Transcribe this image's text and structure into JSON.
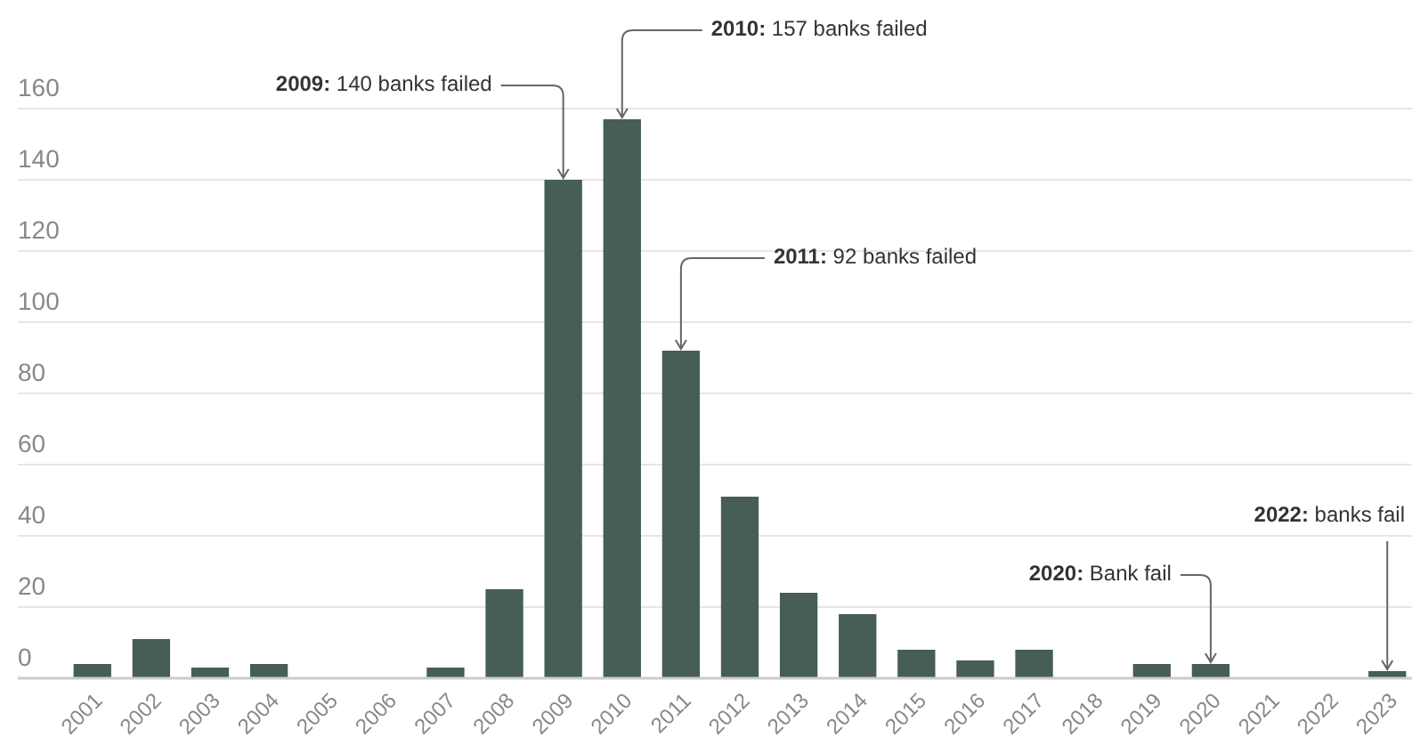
{
  "chart_data": {
    "type": "bar",
    "categories": [
      "2001",
      "2002",
      "2003",
      "2004",
      "2005",
      "2006",
      "2007",
      "2008",
      "2009",
      "2010",
      "2011",
      "2012",
      "2013",
      "2014",
      "2015",
      "2016",
      "2017",
      "2018",
      "2019",
      "2020",
      "2021",
      "2022",
      "2023"
    ],
    "values": [
      4,
      11,
      3,
      4,
      0,
      0,
      3,
      25,
      140,
      157,
      92,
      51,
      24,
      18,
      8,
      5,
      8,
      0,
      4,
      4,
      0,
      0,
      2
    ],
    "color": "#465e55",
    "ylim": [
      0,
      160
    ],
    "yticks": [
      0,
      20,
      40,
      60,
      80,
      100,
      120,
      140,
      160
    ],
    "grid": "y",
    "annotations": [
      {
        "text": "2009: 140 banks failed",
        "x": "2009",
        "y": 140
      },
      {
        "text": "2010: 157 banks failed",
        "x": "2010",
        "y": 157
      },
      {
        "text": "2011: 92 banks failed",
        "x": "2011",
        "y": 92
      },
      {
        "text": "2020: Bank fail",
        "x": "2020",
        "y": 4
      },
      {
        "text": "2022: banks fail",
        "x": "2023",
        "y": 2
      }
    ]
  }
}
